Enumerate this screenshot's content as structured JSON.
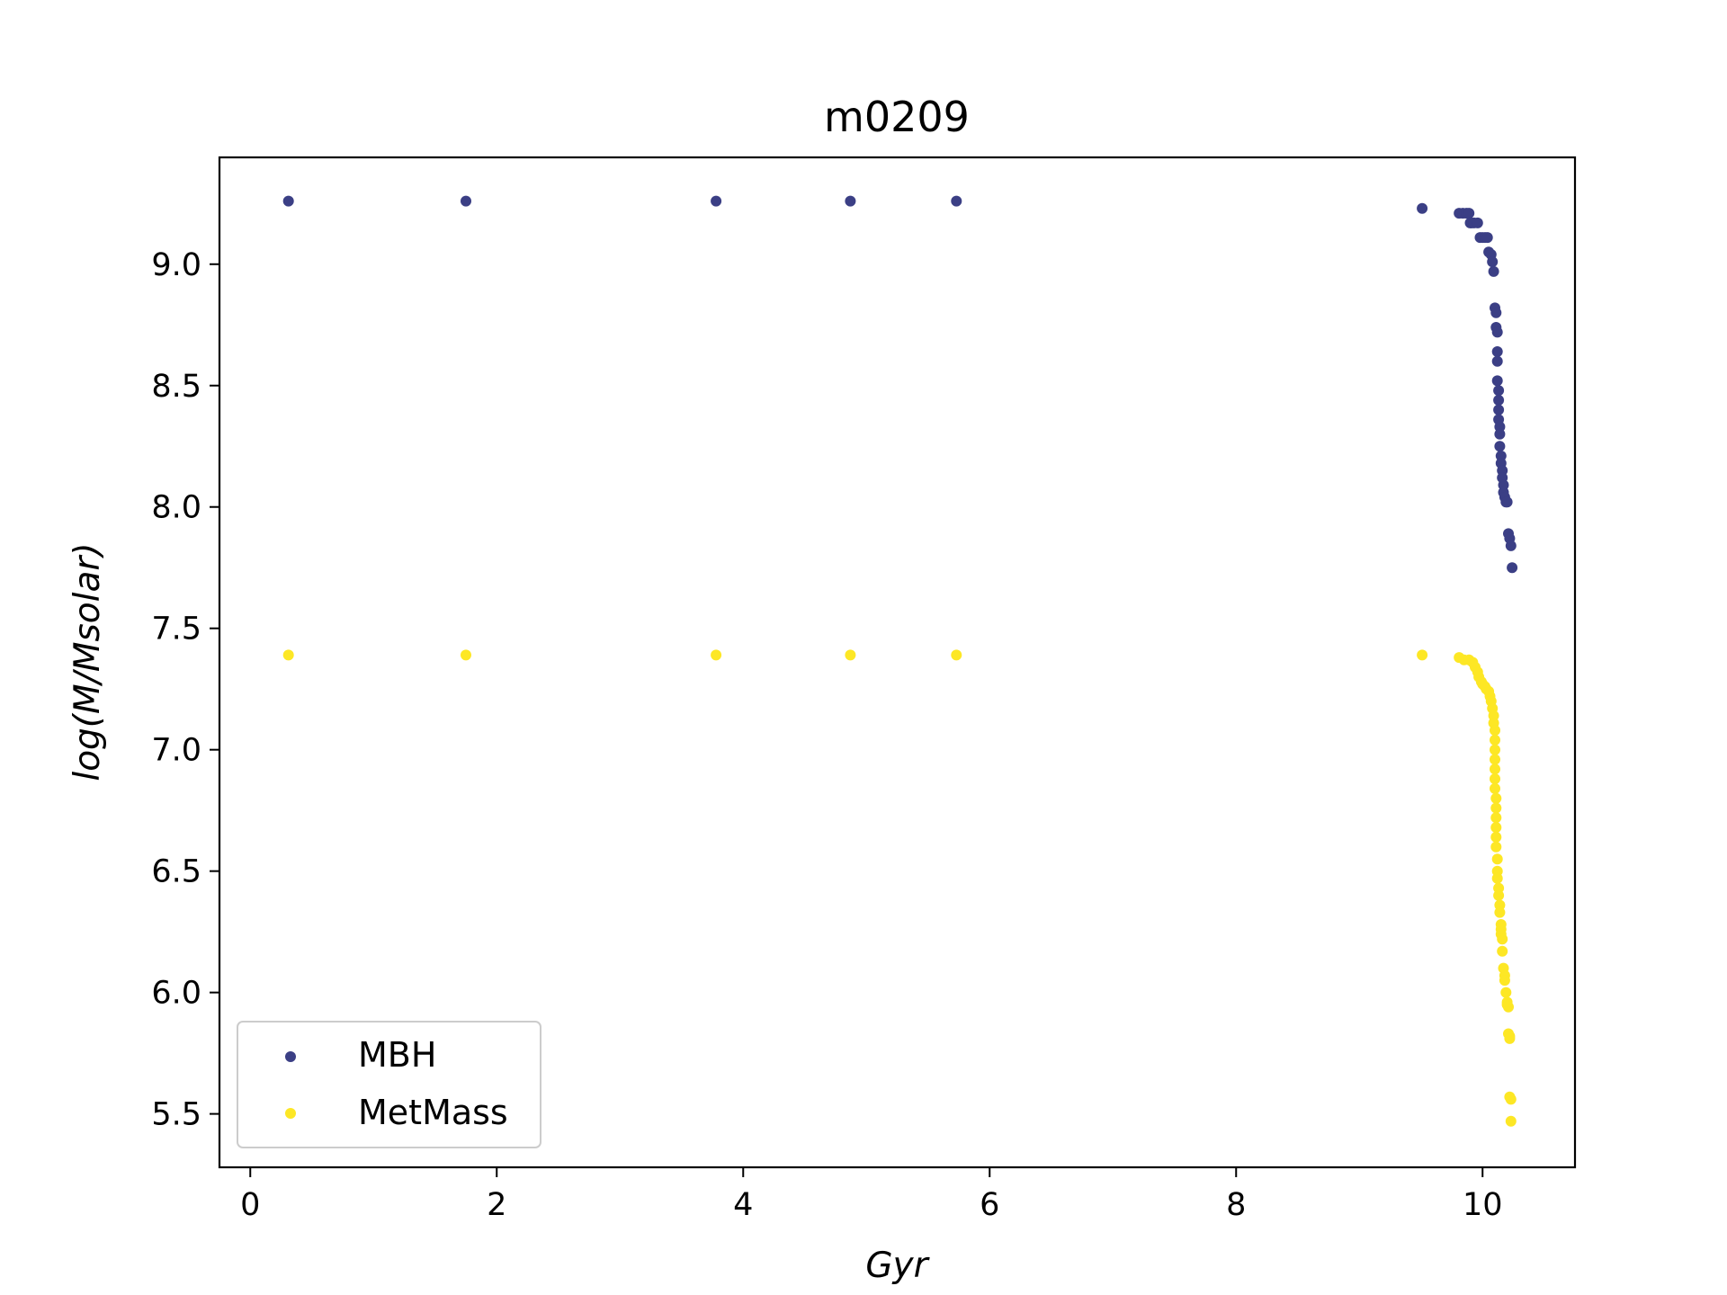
{
  "chart_data": {
    "type": "scatter",
    "title": "m0209",
    "xlabel": "Gyr",
    "ylabel": "log(M/Msolar)",
    "xlim": [
      -0.25,
      10.75
    ],
    "ylim": [
      5.28,
      9.44
    ],
    "xticks": [
      0,
      2,
      4,
      6,
      8,
      10
    ],
    "yticks": [
      5.5,
      6.0,
      6.5,
      7.0,
      7.5,
      8.0,
      8.5,
      9.0
    ],
    "grid": false,
    "legend_position": "lower-left",
    "series": [
      {
        "name": "MBH",
        "color": "#3b3f85",
        "x": [
          0.31,
          1.75,
          3.78,
          4.87,
          5.73,
          9.51,
          9.81,
          9.84,
          9.87,
          9.89,
          9.9,
          9.91,
          9.93,
          9.96,
          9.98,
          10.0,
          10.02,
          10.04,
          10.05,
          10.07,
          10.08,
          10.09,
          10.1,
          10.11,
          10.11,
          10.12,
          10.12,
          10.12,
          10.12,
          10.13,
          10.13,
          10.13,
          10.13,
          10.14,
          10.14,
          10.14,
          10.15,
          10.15,
          10.16,
          10.16,
          10.17,
          10.17,
          10.18,
          10.19,
          10.2,
          10.21,
          10.22,
          10.23,
          10.24
        ],
        "y": [
          9.26,
          9.26,
          9.26,
          9.26,
          9.26,
          9.23,
          9.21,
          9.21,
          9.21,
          9.21,
          9.17,
          9.17,
          9.17,
          9.17,
          9.11,
          9.11,
          9.11,
          9.11,
          9.05,
          9.04,
          9.01,
          8.97,
          8.82,
          8.8,
          8.74,
          8.72,
          8.64,
          8.6,
          8.52,
          8.48,
          8.44,
          8.4,
          8.36,
          8.33,
          8.3,
          8.25,
          8.21,
          8.18,
          8.15,
          8.12,
          8.09,
          8.06,
          8.04,
          8.02,
          8.02,
          7.89,
          7.87,
          7.84,
          7.75
        ]
      },
      {
        "name": "MetMass",
        "color": "#fde725",
        "x": [
          0.31,
          1.75,
          3.78,
          4.87,
          5.73,
          9.51,
          9.81,
          9.85,
          9.89,
          9.92,
          9.94,
          9.96,
          9.97,
          9.99,
          10.0,
          10.02,
          10.03,
          10.05,
          10.06,
          10.07,
          10.08,
          10.09,
          10.09,
          10.1,
          10.1,
          10.1,
          10.1,
          10.1,
          10.1,
          10.1,
          10.11,
          10.11,
          10.11,
          10.11,
          10.11,
          10.11,
          10.12,
          10.12,
          10.12,
          10.13,
          10.13,
          10.14,
          10.14,
          10.15,
          10.15,
          10.15,
          10.16,
          10.16,
          10.17,
          10.18,
          10.18,
          10.19,
          10.2,
          10.2,
          10.21,
          10.21,
          10.22,
          10.22,
          10.22,
          10.23,
          10.23
        ],
        "y": [
          7.39,
          7.39,
          7.39,
          7.39,
          7.39,
          7.39,
          7.38,
          7.37,
          7.37,
          7.36,
          7.34,
          7.32,
          7.3,
          7.28,
          7.27,
          7.26,
          7.25,
          7.24,
          7.22,
          7.2,
          7.17,
          7.14,
          7.11,
          7.08,
          7.04,
          7.0,
          6.96,
          6.92,
          6.88,
          6.84,
          6.8,
          6.76,
          6.72,
          6.68,
          6.64,
          6.6,
          6.55,
          6.5,
          6.47,
          6.43,
          6.4,
          6.36,
          6.33,
          6.28,
          6.26,
          6.24,
          6.22,
          6.17,
          6.1,
          6.07,
          6.05,
          6.0,
          5.96,
          5.95,
          5.94,
          5.83,
          5.82,
          5.81,
          5.57,
          5.56,
          5.47
        ]
      }
    ]
  }
}
